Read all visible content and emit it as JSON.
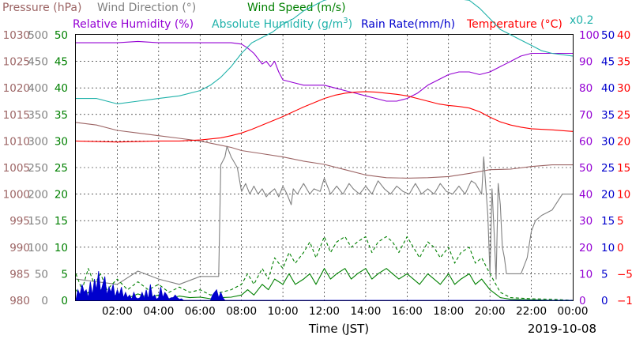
{
  "header": {
    "pressure": "Pressure (hPa)",
    "wind_direction": "Wind Direction (°)",
    "wind_speed": "Wind Speed (m/s)",
    "relative_humidity": "Relative Humidity (%)",
    "absolute_humidity_prefix": "Absolute Humidity (g/m",
    "absolute_humidity_sup": "3",
    "absolute_humidity_suffix": ")",
    "rain_rate": "Rain Rate(mm/h)",
    "temperature": "Temperature (°C)",
    "factor_note": "x0.2"
  },
  "footer": {
    "xlabel": "Time (JST)",
    "date": "2019-10-08"
  },
  "colors": {
    "pressure": "#9c6464",
    "wind_direction": "#808080",
    "wind_speed": "#008000",
    "relative_humidity": "#9400d3",
    "absolute_humidity": "#20b2aa",
    "rain_rate": "#0000cd",
    "temperature": "#ff0000",
    "grid": "#000000"
  },
  "chart_data": {
    "type": "line",
    "grid": true,
    "x_ticks": [
      "02:00",
      "04:00",
      "06:00",
      "08:00",
      "10:00",
      "12:00",
      "14:00",
      "16:00",
      "18:00",
      "20:00",
      "22:00",
      "00:00"
    ],
    "xlim": [
      0,
      24
    ],
    "axes": {
      "pressure": {
        "range": [
          980,
          1030
        ],
        "ticks": [
          "1030",
          "1025",
          "1020",
          "1015",
          "1010",
          "1005",
          "1000",
          "995",
          "990",
          "985",
          "980"
        ]
      },
      "wind_direction": {
        "range": [
          0,
          500
        ],
        "ticks": [
          "500",
          "450",
          "400",
          "350",
          "300",
          "250",
          "200",
          "150",
          "100",
          "50",
          "0"
        ]
      },
      "wind_speed": {
        "range": [
          0,
          50
        ],
        "ticks": [
          "50",
          "45",
          "40",
          "35",
          "30",
          "25",
          "20",
          "15",
          "10",
          "5",
          "0"
        ]
      },
      "relative_humidity": {
        "range": [
          0,
          100
        ],
        "ticks": [
          "100",
          "90",
          "80",
          "70",
          "60",
          "50",
          "40",
          "30",
          "20",
          "10",
          "0"
        ]
      },
      "rain_rate": {
        "range": [
          0,
          50
        ],
        "ticks": [
          "50",
          "45",
          "40",
          "35",
          "30",
          "25",
          "20",
          "15",
          "10",
          "5",
          "0"
        ]
      },
      "temperature": {
        "range": [
          -10,
          40
        ],
        "ticks": [
          "40",
          "35",
          "30",
          "25",
          "20",
          "15",
          "10",
          "5",
          "0",
          "−5",
          "−10"
        ]
      }
    },
    "series": [
      {
        "name": "Pressure (hPa)",
        "axis": "pressure",
        "style": "solid",
        "x": [
          0,
          1,
          2,
          3,
          4,
          5,
          6,
          7,
          7.5,
          8,
          9,
          10,
          11,
          12,
          13,
          14,
          15,
          16,
          17,
          18,
          19,
          20,
          21,
          22,
          23,
          24
        ],
        "y": [
          1013.5,
          1013,
          1012,
          1011.5,
          1011,
          1010.5,
          1010,
          1009.2,
          1008.8,
          1008.2,
          1007.6,
          1007,
          1006.2,
          1005.6,
          1004.6,
          1003.6,
          1003.1,
          1003,
          1003.1,
          1003.3,
          1003.9,
          1004.6,
          1004.7,
          1005.2,
          1005.5,
          1005.5
        ]
      },
      {
        "name": "Wind Direction (°)",
        "axis": "wind_direction",
        "style": "solid",
        "x": [
          0,
          1,
          2,
          3,
          4,
          5,
          6,
          6.9,
          7.0,
          7.2,
          7.3,
          7.5,
          7.8,
          8.0,
          8.2,
          8.4,
          8.6,
          8.8,
          9.0,
          9.2,
          9.3,
          9.6,
          9.8,
          10.0,
          10.2,
          10.4,
          10.5,
          10.7,
          11.0,
          11.3,
          11.5,
          11.8,
          12.0,
          12.3,
          12.6,
          12.9,
          13.2,
          13.4,
          13.7,
          14.0,
          14.3,
          14.6,
          14.9,
          15.2,
          15.5,
          15.8,
          16.1,
          16.4,
          16.7,
          17.0,
          17.3,
          17.6,
          17.9,
          18.2,
          18.5,
          18.8,
          19.1,
          19.3,
          19.6,
          19.7,
          19.9,
          20.0,
          20.1,
          20.2,
          20.3,
          20.4,
          20.5,
          20.6,
          20.7,
          20.8,
          21.0,
          21.5,
          21.8,
          22.0,
          22.2,
          22.5,
          23.0,
          23.5,
          24.0
        ],
        "y": [
          40,
          35,
          30,
          55,
          40,
          30,
          45,
          45,
          255,
          270,
          290,
          270,
          250,
          205,
          220,
          200,
          215,
          200,
          210,
          195,
          200,
          210,
          195,
          215,
          200,
          180,
          210,
          200,
          220,
          200,
          210,
          205,
          230,
          200,
          215,
          200,
          220,
          210,
          200,
          215,
          200,
          225,
          210,
          200,
          215,
          205,
          200,
          220,
          200,
          210,
          200,
          220,
          205,
          200,
          215,
          200,
          225,
          220,
          200,
          270,
          160,
          50,
          210,
          130,
          40,
          220,
          180,
          100,
          80,
          50,
          50,
          50,
          80,
          130,
          150,
          160,
          170,
          200,
          200
        ]
      },
      {
        "name": "Wind Speed (m/s)",
        "axis": "wind_speed",
        "style": "solid",
        "x": [
          0,
          0.3,
          0.6,
          0.9,
          1.2,
          1.5,
          2,
          2.5,
          3,
          3.5,
          4,
          4.5,
          5,
          5.5,
          6,
          6.5,
          7,
          7.5,
          8,
          8.3,
          8.6,
          9,
          9.3,
          9.6,
          10,
          10.3,
          10.6,
          11,
          11.3,
          11.6,
          12,
          12.3,
          12.6,
          13,
          13.3,
          13.6,
          14,
          14.3,
          14.6,
          15,
          15.3,
          15.6,
          16,
          16.3,
          16.6,
          17,
          17.3,
          17.6,
          18,
          18.3,
          18.6,
          19,
          19.3,
          19.6,
          20,
          20.5,
          21,
          22,
          23,
          24
        ],
        "y": [
          2,
          0.5,
          1.5,
          0.8,
          2,
          0.5,
          1,
          0.4,
          1.2,
          0.5,
          1,
          0.3,
          0.8,
          0.5,
          0.6,
          0.3,
          0.5,
          0.6,
          1,
          2,
          1,
          3,
          2,
          4,
          3,
          5,
          3,
          4,
          5,
          3,
          6,
          4,
          5,
          6,
          4,
          5,
          6,
          4,
          5,
          6,
          5,
          4,
          5,
          4,
          3,
          5,
          4,
          3,
          5,
          3,
          4,
          5,
          3,
          4,
          2,
          0.5,
          0.2,
          0.1,
          0,
          0
        ]
      },
      {
        "name": "Wind Speed max (m/s)",
        "axis": "wind_speed",
        "style": "dashed",
        "x": [
          0,
          0.3,
          0.6,
          0.9,
          1.2,
          1.5,
          2,
          2.5,
          3,
          3.5,
          4,
          4.5,
          5,
          5.5,
          6,
          6.5,
          7,
          7.5,
          8,
          8.3,
          8.6,
          9,
          9.3,
          9.6,
          10,
          10.3,
          10.6,
          11,
          11.3,
          11.6,
          12,
          12.3,
          12.6,
          13,
          13.3,
          13.6,
          14,
          14.3,
          14.6,
          15,
          15.3,
          15.6,
          16,
          16.3,
          16.6,
          17,
          17.3,
          17.6,
          18,
          18.3,
          18.6,
          19,
          19.3,
          19.6,
          20,
          20.5,
          21,
          22,
          23,
          24
        ],
        "y": [
          5,
          2,
          6,
          3,
          5,
          2,
          4,
          2,
          3.5,
          2,
          3,
          1.5,
          2.5,
          1.5,
          2,
          1,
          1.5,
          2,
          3,
          5,
          3,
          6,
          4,
          8,
          6,
          9,
          7,
          9,
          11,
          8,
          12,
          9,
          11,
          12,
          10,
          11,
          12,
          9,
          11,
          12,
          11,
          9,
          12,
          10,
          8,
          11,
          10,
          8,
          10,
          7,
          9,
          10,
          7,
          8,
          5,
          1.5,
          0.5,
          0.3,
          0.2,
          0
        ]
      },
      {
        "name": "Relative Humidity (%)",
        "axis": "relative_humidity",
        "style": "solid",
        "x": [
          0,
          1,
          2,
          3,
          4,
          5,
          6,
          7,
          7.5,
          8,
          8.3,
          8.6,
          8.8,
          9.0,
          9.2,
          9.4,
          9.6,
          9.8,
          10,
          10.5,
          11,
          11.5,
          12,
          12.5,
          13,
          13.5,
          14,
          14.5,
          15,
          15.5,
          16,
          16.5,
          17,
          17.5,
          18,
          18.5,
          19,
          19.5,
          20,
          20.5,
          21,
          21.5,
          22,
          22.5,
          23,
          24
        ],
        "y": [
          97,
          97,
          97,
          97.5,
          97,
          97,
          97,
          97,
          97,
          96.5,
          95,
          93,
          91,
          89,
          90,
          88,
          90,
          86,
          83,
          82,
          81,
          81,
          81,
          80,
          79,
          78,
          77,
          76,
          75,
          75,
          76,
          78,
          81,
          83,
          85,
          86,
          86,
          85,
          86,
          88,
          90,
          92,
          93,
          93,
          93,
          93
        ]
      },
      {
        "name": "Absolute Humidity (g/m3) x0.2",
        "axis": "rain_rate",
        "style": "solid",
        "x": [
          0,
          1,
          1.5,
          2,
          3,
          4,
          5,
          6,
          6.5,
          7,
          7.5,
          8,
          8.5,
          9,
          9.5,
          10,
          10.5,
          11,
          11.5,
          12,
          13,
          14,
          15,
          16,
          17,
          18,
          19,
          19.5,
          20,
          20.5,
          21,
          21.5,
          22,
          22.5,
          23,
          24
        ],
        "y": [
          38,
          38,
          37.5,
          37,
          37.5,
          38,
          38.5,
          39.5,
          40.5,
          42,
          44,
          46.5,
          48.5,
          49.5,
          50.5,
          52,
          53,
          54.5,
          55.5,
          56.5,
          57.5,
          58.5,
          58.5,
          57.5,
          57.5,
          57,
          56.5,
          55,
          53,
          51,
          50,
          49,
          48,
          47,
          46.5,
          46
        ]
      },
      {
        "name": "Rain Rate (mm/h)",
        "axis": "rain_rate",
        "style": "fill",
        "x": [
          0,
          0.1,
          0.2,
          0.3,
          0.4,
          0.5,
          0.6,
          0.7,
          0.8,
          0.9,
          1.0,
          1.1,
          1.2,
          1.3,
          1.4,
          1.5,
          1.6,
          1.7,
          1.8,
          1.9,
          2.0,
          2.1,
          2.2,
          2.3,
          2.4,
          2.5,
          2.6,
          2.7,
          2.8,
          2.9,
          3.0,
          3.1,
          3.2,
          3.3,
          3.4,
          3.5,
          3.6,
          3.7,
          3.8,
          3.9,
          4.0,
          4.1,
          4.2,
          4.3,
          4.4,
          4.5,
          4.6,
          4.7,
          4.8,
          4.9,
          5.0,
          5.1,
          5.2,
          6.0,
          6.5,
          6.6,
          6.7,
          6.8,
          6.9,
          7.0,
          7.1,
          7.2,
          24
        ],
        "y": [
          0,
          2,
          1,
          3,
          1.5,
          2,
          0.5,
          3.5,
          1,
          4,
          2,
          5.5,
          1.5,
          3,
          4.5,
          1,
          2.5,
          1.5,
          3,
          0.5,
          2,
          1,
          2.5,
          0.5,
          1.5,
          0.5,
          1,
          0.2,
          1.5,
          0.5,
          0.3,
          0.5,
          1.5,
          0.3,
          2,
          0.2,
          3,
          0.5,
          1,
          0.2,
          0.5,
          2.5,
          0.5,
          1.5,
          1,
          0.2,
          0.5,
          0.5,
          1,
          0.5,
          0.2,
          0.3,
          0,
          0,
          0,
          1,
          1.5,
          2,
          0.5,
          1.5,
          0.5,
          0,
          0
        ]
      },
      {
        "name": "Temperature (°C)",
        "axis": "temperature",
        "style": "solid",
        "x": [
          0,
          1,
          2,
          3,
          4,
          5,
          6,
          7,
          7.5,
          8,
          8.5,
          9,
          9.5,
          10,
          10.5,
          11,
          11.5,
          12,
          12.5,
          13,
          13.5,
          14,
          14.5,
          15,
          15.5,
          16,
          16.5,
          17,
          17.5,
          18,
          18.5,
          19,
          19.5,
          20,
          20.5,
          21,
          21.5,
          22,
          23,
          24
        ],
        "y": [
          20,
          19.9,
          19.8,
          19.9,
          20,
          20,
          20.2,
          20.6,
          21,
          21.5,
          22.2,
          23,
          23.8,
          24.6,
          25.5,
          26.4,
          27.2,
          28,
          28.6,
          29,
          29.2,
          29.3,
          29.2,
          29,
          28.8,
          28.5,
          28,
          27.5,
          27,
          26.7,
          26.5,
          26.2,
          25.5,
          24.5,
          23.6,
          23,
          22.6,
          22.3,
          22.1,
          21.8
        ]
      }
    ]
  }
}
